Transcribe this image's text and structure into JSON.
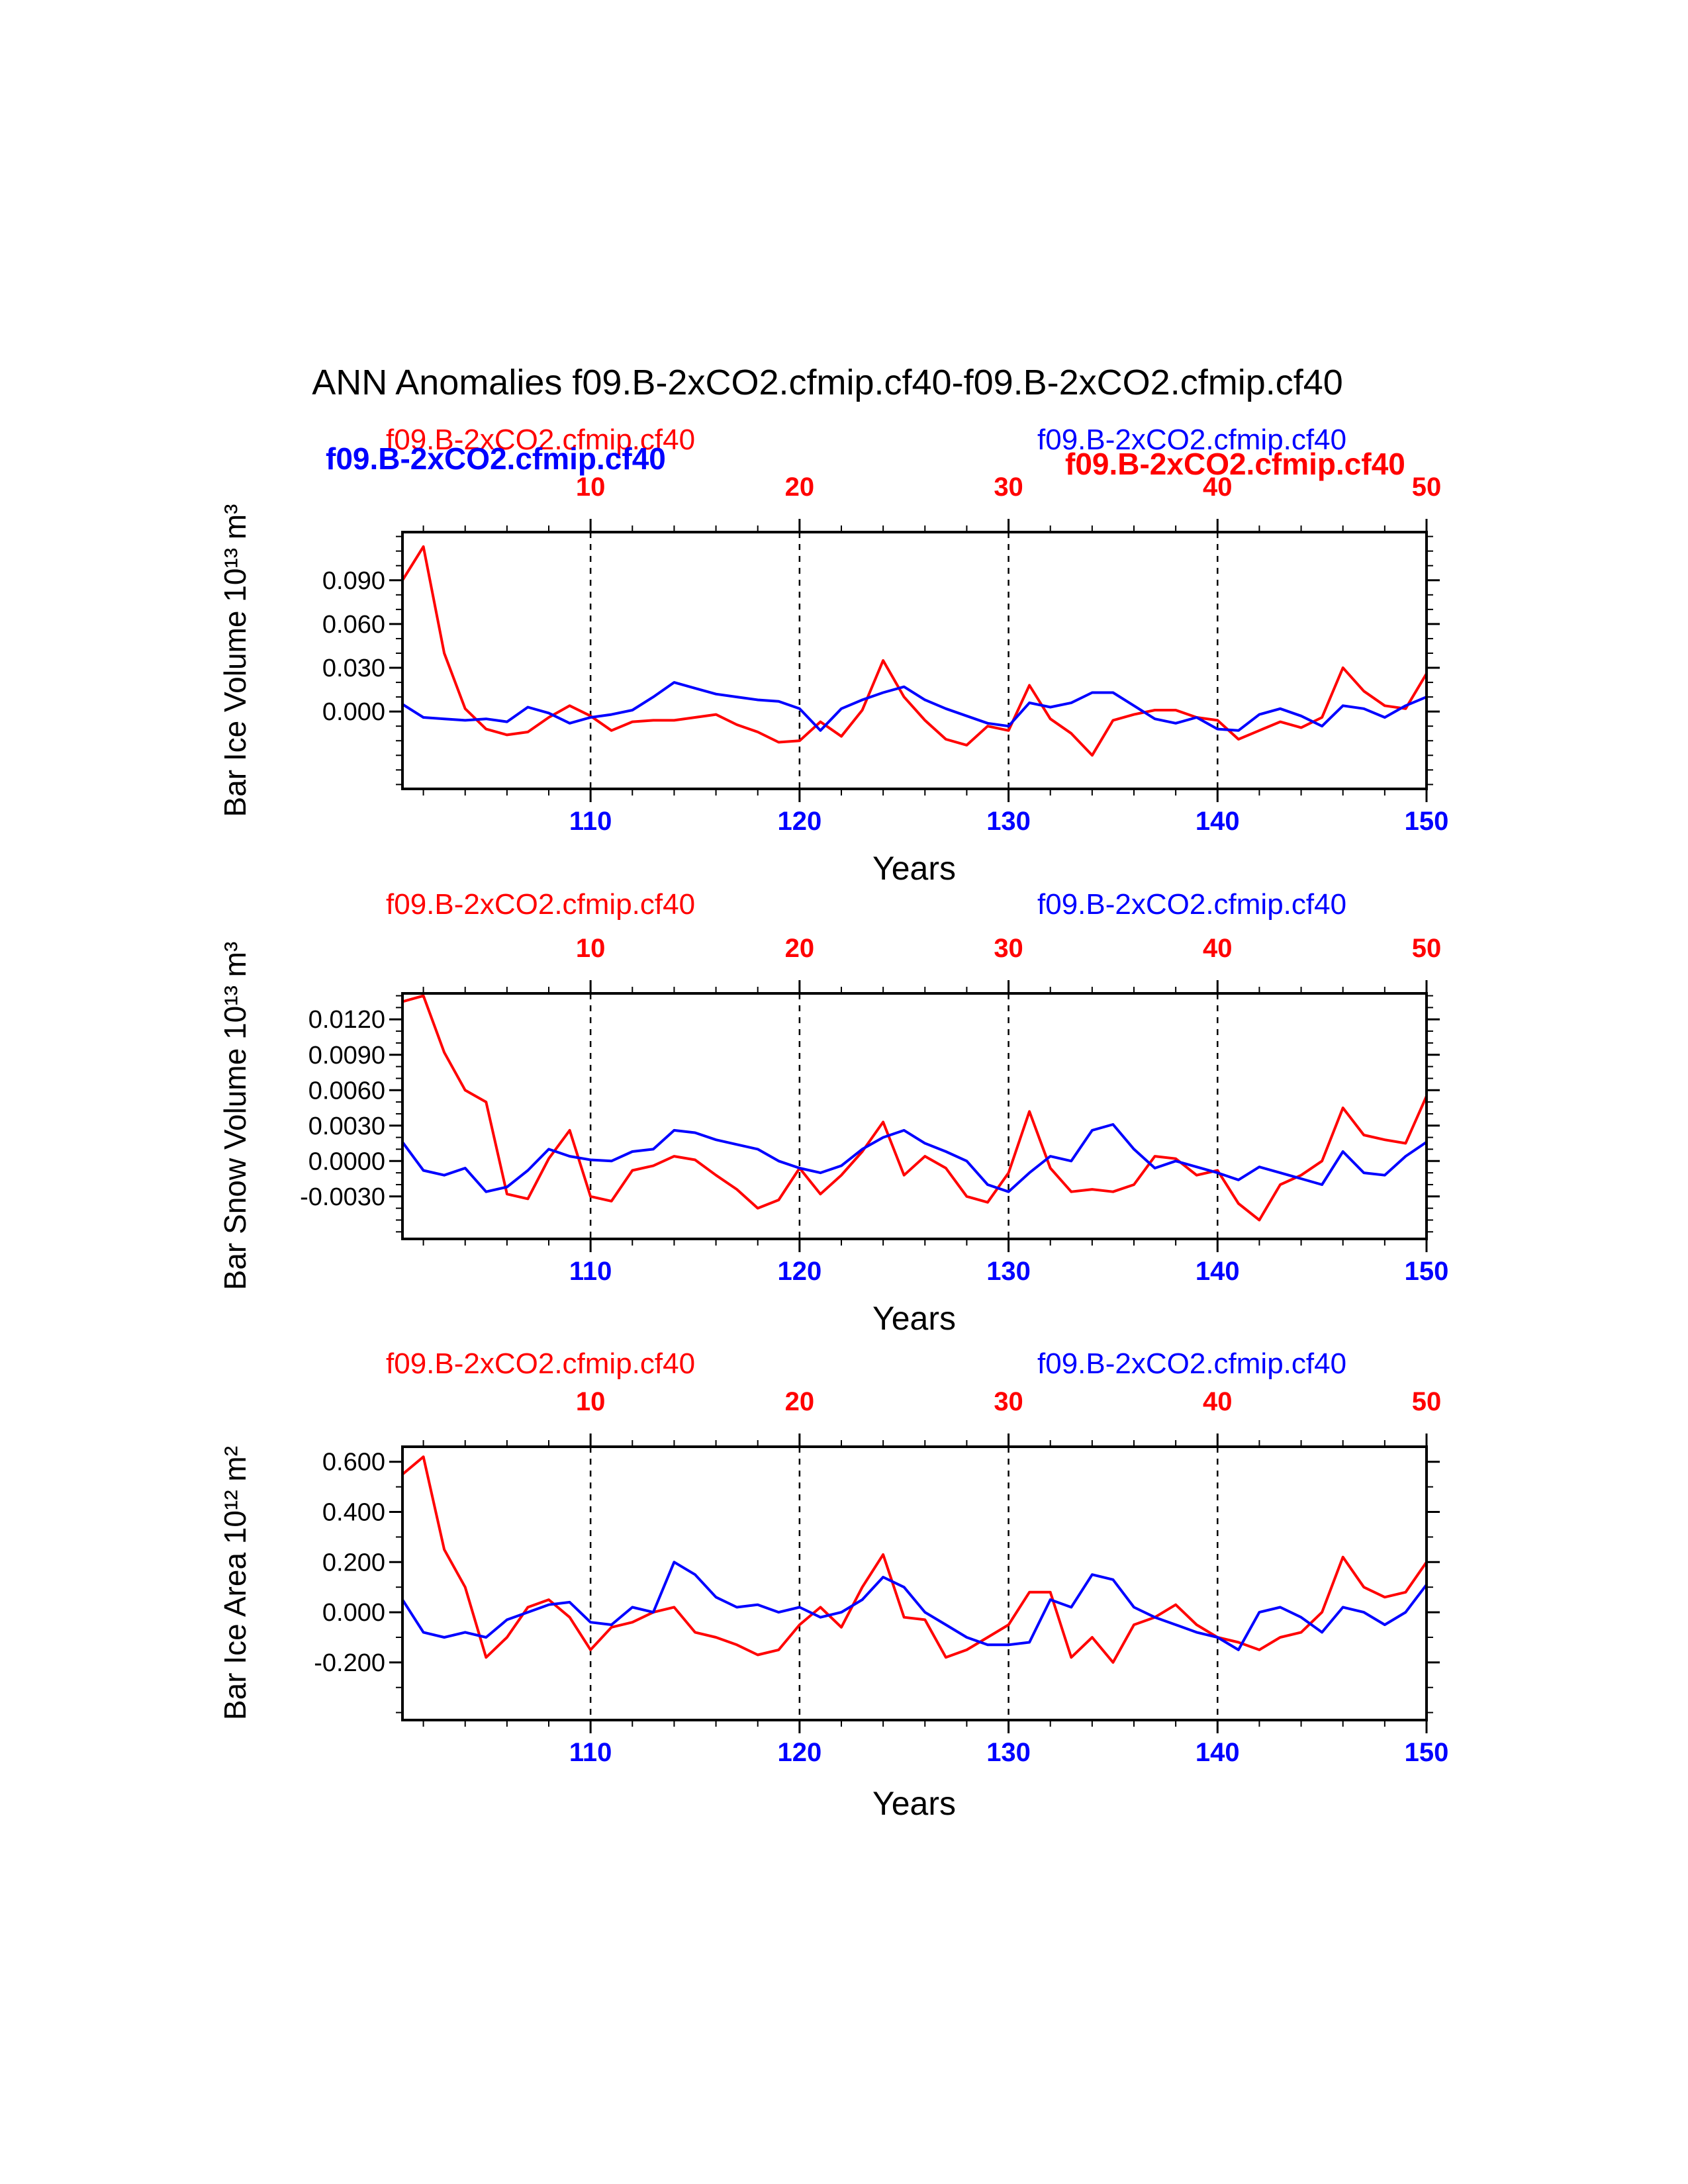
{
  "title": "ANN Anomalies f09.B-2xCO2.cfmip.cf40-f09.B-2xCO2.cfmip.cf40",
  "colors": {
    "red": "#ff0000",
    "blue": "#0000ff",
    "axis": "#000000",
    "background": "#ffffff"
  },
  "chart_data": [
    {
      "type": "line",
      "name": "bar-ice-volume",
      "ylabel": "Bar Ice Volume 10¹³ m³",
      "xlabel": "Years",
      "legend_left": "f09.B-2xCO2.cfmip.cf40",
      "legend_left_color": "#ff0000",
      "legend_right": "f09.B-2xCO2.cfmip.cf40",
      "legend_right_color": "#0000ff",
      "overlap_legend_left": "f09.B-2xCO2.cfmip.cf40",
      "overlap_legend_left_color": "#0000ff",
      "overlap_legend_right": "f09.B-2xCO2.cfmip.cf40",
      "overlap_legend_right_color": "#ff0000",
      "x_axis_top": {
        "color": "#ff0000",
        "ticks": [
          10,
          20,
          30,
          40,
          50
        ],
        "range": [
          1,
          50
        ],
        "minor_step": 2,
        "dashed_at": [
          10,
          20,
          30,
          40
        ]
      },
      "x_axis_bottom": {
        "color": "#0000ff",
        "ticks": [
          110,
          120,
          130,
          140,
          150
        ],
        "range": [
          101,
          150
        ]
      },
      "ylim": [
        -0.053,
        0.123
      ],
      "y_minor_step": 0.01,
      "yticks": [
        {
          "value": 0.0,
          "label": "0.000"
        },
        {
          "value": 0.03,
          "label": "0.030"
        },
        {
          "value": 0.06,
          "label": "0.060"
        },
        {
          "value": 0.09,
          "label": "0.090"
        }
      ],
      "grid": "dashed-vertical",
      "legend_position": "above",
      "series": [
        {
          "name": "f09.B-2xCO2.cfmip.cf40",
          "color": "#ff0000",
          "axis": "top",
          "x_start": 1,
          "values": [
            0.09,
            0.113,
            0.04,
            0.002,
            -0.012,
            -0.016,
            -0.014,
            -0.004,
            0.004,
            -0.003,
            -0.013,
            -0.007,
            -0.006,
            -0.006,
            -0.004,
            -0.002,
            -0.009,
            -0.014,
            -0.021,
            -0.02,
            -0.007,
            -0.017,
            0.001,
            0.035,
            0.01,
            -0.006,
            -0.019,
            -0.023,
            -0.01,
            -0.013,
            0.018,
            -0.005,
            -0.015,
            -0.03,
            -0.006,
            -0.002,
            0.001,
            0.001,
            -0.004,
            -0.006,
            -0.019,
            -0.013,
            -0.007,
            -0.011,
            -0.004,
            0.03,
            0.014,
            0.004,
            0.002,
            0.026
          ]
        },
        {
          "name": "f09.B-2xCO2.cfmip.cf40",
          "color": "#0000ff",
          "axis": "bottom",
          "x_start": 101,
          "values": [
            0.005,
            -0.004,
            -0.005,
            -0.006,
            -0.005,
            -0.007,
            0.003,
            -0.001,
            -0.008,
            -0.004,
            -0.002,
            0.001,
            0.01,
            0.02,
            0.016,
            0.012,
            0.01,
            0.008,
            0.007,
            0.002,
            -0.013,
            0.002,
            0.008,
            0.013,
            0.017,
            0.008,
            0.002,
            -0.003,
            -0.008,
            -0.01,
            0.006,
            0.003,
            0.006,
            0.013,
            0.013,
            0.004,
            -0.005,
            -0.008,
            -0.004,
            -0.012,
            -0.013,
            -0.002,
            0.002,
            -0.003,
            -0.01,
            0.004,
            0.002,
            -0.004,
            0.004,
            0.01
          ]
        }
      ]
    },
    {
      "type": "line",
      "name": "bar-snow-volume",
      "ylabel": "Bar Snow Volume 10¹³ m³",
      "xlabel": "Years",
      "legend_left": "f09.B-2xCO2.cfmip.cf40",
      "legend_left_color": "#ff0000",
      "legend_right": "f09.B-2xCO2.cfmip.cf40",
      "legend_right_color": "#0000ff",
      "x_axis_top": {
        "color": "#ff0000",
        "ticks": [
          10,
          20,
          30,
          40,
          50
        ],
        "range": [
          1,
          50
        ],
        "minor_step": 2,
        "dashed_at": [
          10,
          20,
          30,
          40
        ]
      },
      "x_axis_bottom": {
        "color": "#0000ff",
        "ticks": [
          110,
          120,
          130,
          140,
          150
        ],
        "range": [
          101,
          150
        ]
      },
      "ylim": [
        -0.0066,
        0.0142
      ],
      "y_minor_step": 0.001,
      "yticks": [
        {
          "value": -0.003,
          "label": "-0.0030"
        },
        {
          "value": 0.0,
          "label": "0.0000"
        },
        {
          "value": 0.003,
          "label": "0.0030"
        },
        {
          "value": 0.006,
          "label": "0.0060"
        },
        {
          "value": 0.009,
          "label": "0.0090"
        },
        {
          "value": 0.012,
          "label": "0.0120"
        }
      ],
      "grid": "dashed-vertical",
      "legend_position": "above",
      "series": [
        {
          "name": "f09.B-2xCO2.cfmip.cf40",
          "color": "#ff0000",
          "axis": "top",
          "x_start": 1,
          "values": [
            0.0135,
            0.014,
            0.0092,
            0.006,
            0.005,
            -0.0028,
            -0.0032,
            0.0002,
            0.0026,
            -0.003,
            -0.0034,
            -0.0008,
            -0.0004,
            0.0004,
            0.0001,
            -0.0012,
            -0.0024,
            -0.004,
            -0.0033,
            -0.0006,
            -0.0028,
            -0.0012,
            0.0008,
            0.0033,
            -0.0012,
            0.0004,
            -0.0006,
            -0.003,
            -0.0035,
            -0.001,
            0.0042,
            -0.0006,
            -0.0026,
            -0.0024,
            -0.0026,
            -0.002,
            0.0004,
            0.0002,
            -0.0012,
            -0.0008,
            -0.0036,
            -0.005,
            -0.002,
            -0.0012,
            0.0,
            0.0045,
            0.0022,
            0.0018,
            0.0015,
            0.0055
          ]
        },
        {
          "name": "f09.B-2xCO2.cfmip.cf40",
          "color": "#0000ff",
          "axis": "bottom",
          "x_start": 101,
          "values": [
            0.0016,
            -0.0008,
            -0.0012,
            -0.0006,
            -0.0026,
            -0.0022,
            -0.0008,
            0.001,
            0.0004,
            0.0001,
            0.0,
            0.0008,
            0.001,
            0.0026,
            0.0024,
            0.0018,
            0.0014,
            0.001,
            0.0,
            -0.0006,
            -0.001,
            -0.0004,
            0.001,
            0.002,
            0.0026,
            0.0015,
            0.0008,
            0.0,
            -0.002,
            -0.0026,
            -0.001,
            0.0004,
            0.0,
            0.0026,
            0.0031,
            0.001,
            -0.0006,
            0.0,
            -0.0005,
            -0.001,
            -0.0016,
            -0.0005,
            -0.001,
            -0.0015,
            -0.002,
            0.0008,
            -0.001,
            -0.0012,
            0.0004,
            0.0016
          ]
        }
      ]
    },
    {
      "type": "line",
      "name": "bar-ice-area",
      "ylabel": "Bar Ice Area 10¹² m²",
      "xlabel": "Years",
      "legend_left": "f09.B-2xCO2.cfmip.cf40",
      "legend_left_color": "#ff0000",
      "legend_right": "f09.B-2xCO2.cfmip.cf40",
      "legend_right_color": "#0000ff",
      "x_axis_top": {
        "color": "#ff0000",
        "ticks": [
          10,
          20,
          30,
          40,
          50
        ],
        "range": [
          1,
          50
        ],
        "minor_step": 2,
        "dashed_at": [
          10,
          20,
          30,
          40
        ]
      },
      "x_axis_bottom": {
        "color": "#0000ff",
        "ticks": [
          110,
          120,
          130,
          140,
          150
        ],
        "range": [
          101,
          150
        ]
      },
      "ylim": [
        -0.43,
        0.66
      ],
      "y_minor_step": 0.1,
      "yticks": [
        {
          "value": -0.2,
          "label": "-0.200"
        },
        {
          "value": 0.0,
          "label": "0.000"
        },
        {
          "value": 0.2,
          "label": "0.200"
        },
        {
          "value": 0.4,
          "label": "0.400"
        },
        {
          "value": 0.6,
          "label": "0.600"
        }
      ],
      "grid": "dashed-vertical",
      "legend_position": "above",
      "series": [
        {
          "name": "f09.B-2xCO2.cfmip.cf40",
          "color": "#ff0000",
          "axis": "top",
          "x_start": 1,
          "values": [
            0.55,
            0.62,
            0.25,
            0.1,
            -0.18,
            -0.1,
            0.02,
            0.05,
            -0.02,
            -0.15,
            -0.06,
            -0.04,
            0.0,
            0.02,
            -0.08,
            -0.1,
            -0.13,
            -0.17,
            -0.15,
            -0.05,
            0.02,
            -0.06,
            0.1,
            0.23,
            -0.02,
            -0.03,
            -0.18,
            -0.15,
            -0.1,
            -0.05,
            0.08,
            0.08,
            -0.18,
            -0.1,
            -0.2,
            -0.05,
            -0.02,
            0.03,
            -0.05,
            -0.1,
            -0.12,
            -0.15,
            -0.1,
            -0.08,
            0.0,
            0.22,
            0.1,
            0.06,
            0.08,
            0.2
          ]
        },
        {
          "name": "f09.B-2xCO2.cfmip.cf40",
          "color": "#0000ff",
          "axis": "bottom",
          "x_start": 101,
          "values": [
            0.05,
            -0.08,
            -0.1,
            -0.08,
            -0.1,
            -0.03,
            0.0,
            0.03,
            0.04,
            -0.04,
            -0.05,
            0.02,
            0.0,
            0.2,
            0.15,
            0.06,
            0.02,
            0.03,
            0.0,
            0.02,
            -0.02,
            0.0,
            0.05,
            0.14,
            0.1,
            0.0,
            -0.05,
            -0.1,
            -0.13,
            -0.13,
            -0.12,
            0.05,
            0.02,
            0.15,
            0.13,
            0.02,
            -0.02,
            -0.05,
            -0.08,
            -0.1,
            -0.15,
            0.0,
            0.02,
            -0.02,
            -0.08,
            0.02,
            0.0,
            -0.05,
            0.0,
            0.11
          ]
        }
      ]
    }
  ]
}
